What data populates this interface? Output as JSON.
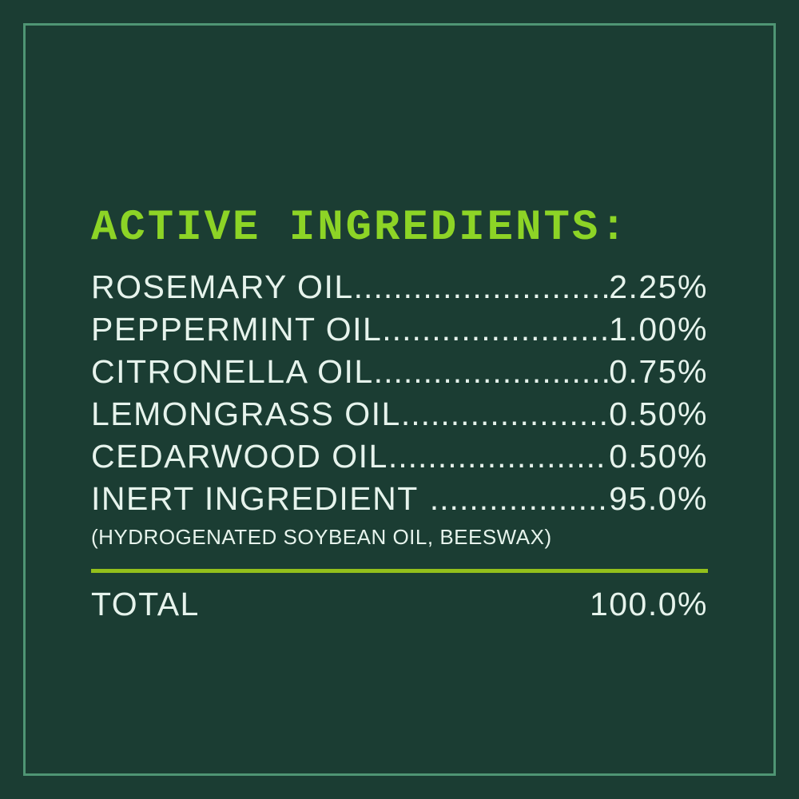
{
  "colors": {
    "bg": "#1b3d33",
    "frame": "#4f9574",
    "heading": "#8dd426",
    "divider": "#93c01b",
    "text": "#e6f3ec"
  },
  "heading": "ACTIVE INGREDIENTS:",
  "leader_dots": "......................................................................................",
  "rows": [
    {
      "name": "ROSEMARY OIL",
      "value": "2.25%"
    },
    {
      "name": "PEPPERMINT OIL",
      "value": "1.00%"
    },
    {
      "name": "CITRONELLA OIL",
      "value": "0.75%"
    },
    {
      "name": "LEMONGRASS OIL",
      "value": "0.50%"
    },
    {
      "name": "CEDARWOOD OIL",
      "value": "0.50%"
    },
    {
      "name": "INERT INGREDIENT",
      "value": "95.0%",
      "note": "(HYDROGENATED SOYBEAN OIL, BEESWAX)"
    }
  ],
  "total": {
    "label": "TOTAL",
    "value": "100.0%"
  }
}
